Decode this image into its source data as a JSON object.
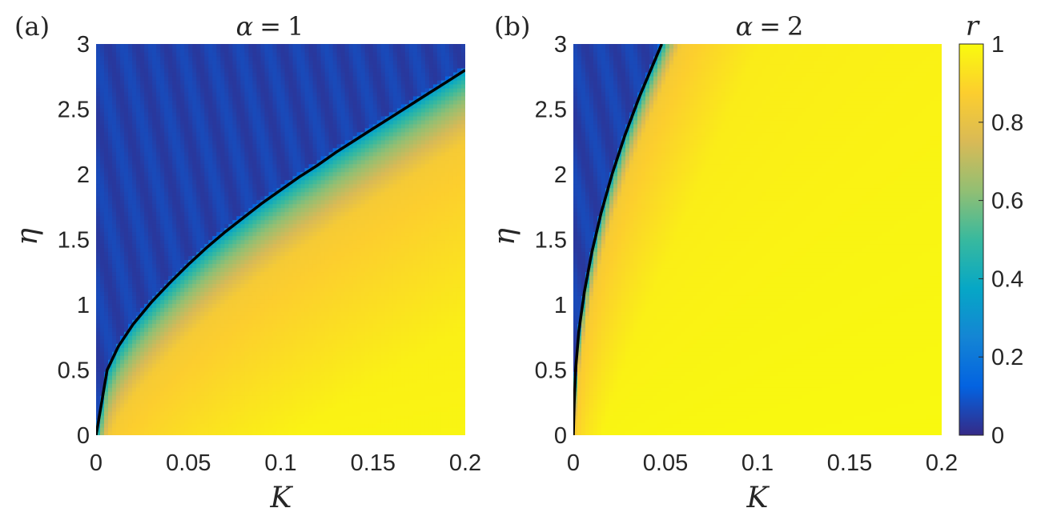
{
  "chart_data": [
    {
      "type": "heatmap",
      "panel_label": "(a)",
      "title_symbol": "α",
      "title_operator": "=",
      "title_value": "1",
      "alpha": 1,
      "xlabel": "K",
      "ylabel": "η",
      "xlim": [
        0,
        0.2
      ],
      "ylim": [
        0,
        3
      ],
      "xticks": [
        "0",
        "0.05",
        "0.1",
        "0.15",
        "0.2"
      ],
      "yticks": [
        "0",
        "0.5",
        "1",
        "1.5",
        "2",
        "2.5",
        "3"
      ],
      "color_variable": "r",
      "critical_curve": {
        "color": "#000000",
        "points": [
          [
            0,
            0
          ],
          [
            0.003,
            0.25
          ],
          [
            0.006,
            0.5
          ],
          [
            0.012,
            0.68
          ],
          [
            0.02,
            0.85
          ],
          [
            0.03,
            1.02
          ],
          [
            0.04,
            1.17
          ],
          [
            0.05,
            1.31
          ],
          [
            0.06,
            1.44
          ],
          [
            0.07,
            1.56
          ],
          [
            0.08,
            1.67
          ],
          [
            0.09,
            1.78
          ],
          [
            0.1,
            1.88
          ],
          [
            0.11,
            1.98
          ],
          [
            0.12,
            2.07
          ],
          [
            0.13,
            2.17
          ],
          [
            0.14,
            2.26
          ],
          [
            0.15,
            2.35
          ],
          [
            0.16,
            2.44
          ],
          [
            0.17,
            2.53
          ],
          [
            0.18,
            2.62
          ],
          [
            0.19,
            2.71
          ],
          [
            0.2,
            2.8
          ]
        ]
      },
      "transition_band_width": 0.55,
      "peak_r_above_transition": 0.85,
      "incoherent_r": 0.05,
      "coherent_r": 1.0
    },
    {
      "type": "heatmap",
      "panel_label": "(b)",
      "title_symbol": "α",
      "title_operator": "=",
      "title_value": "2",
      "alpha": 2,
      "xlabel": "K",
      "ylabel": "η",
      "xlim": [
        0,
        0.2
      ],
      "ylim": [
        0,
        3
      ],
      "xticks": [
        "0",
        "0.05",
        "0.1",
        "0.15",
        "0.2"
      ],
      "yticks": [
        "0",
        "0.5",
        "1",
        "1.5",
        "2",
        "2.5",
        "3"
      ],
      "color_variable": "r",
      "critical_curve": {
        "color": "#000000",
        "points": [
          [
            0,
            0
          ],
          [
            0.0005,
            0.25
          ],
          [
            0.0012,
            0.5
          ],
          [
            0.003,
            0.8
          ],
          [
            0.006,
            1.1
          ],
          [
            0.01,
            1.4
          ],
          [
            0.015,
            1.7
          ],
          [
            0.021,
            2.0
          ],
          [
            0.028,
            2.3
          ],
          [
            0.036,
            2.6
          ],
          [
            0.045,
            2.9
          ],
          [
            0.048,
            3.0
          ]
        ]
      },
      "transition_band_width": 0.35,
      "peak_r_above_transition": 0.85,
      "incoherent_r": 0.05,
      "coherent_r": 1.0
    }
  ],
  "colorbar": {
    "label": "r",
    "min": 0,
    "max": 1,
    "ticks": [
      "0",
      "0.2",
      "0.4",
      "0.6",
      "0.8",
      "1"
    ],
    "colormap": "parula",
    "colormap_stops": [
      "#352a87",
      "#0363e1",
      "#1485d4",
      "#06a7c6",
      "#38b99e",
      "#92bf73",
      "#d9ba56",
      "#fcce2e",
      "#f9fb0e"
    ]
  }
}
